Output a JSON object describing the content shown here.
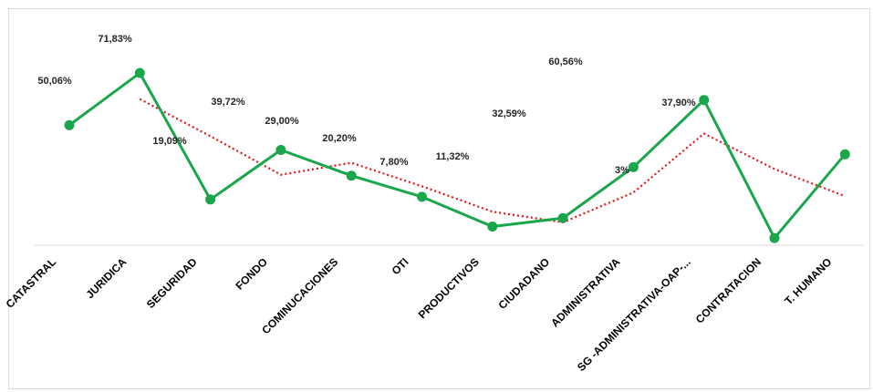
{
  "chart_data": {
    "type": "line",
    "categories": [
      "CATASTRAL",
      "JURIDICA",
      "SEGURIDAD",
      "FONDO",
      "COMINUCACIONES",
      "OTI",
      "PRODUCTIVOS",
      "CIUDADANO",
      "ADMINISTRATIVA",
      "SG -ADMINISTRATIVA-OAP-...",
      "CONTRATACION",
      "T. HUMANO"
    ],
    "series": [
      {
        "values": [
          50.06,
          71.83,
          19.09,
          39.72,
          29.0,
          20.2,
          7.8,
          11.32,
          32.59,
          60.56,
          3.0,
          37.9
        ],
        "data_labels": [
          "50,06%",
          "71,83%",
          "19,09%",
          "39,72%",
          "29,00%",
          "20,20%",
          "7,80%",
          "11,32%",
          "32,59%",
          "60,56%",
          "3%",
          "37,90%"
        ],
        "color": "#1aa64a",
        "style": "solid",
        "markers": true
      },
      {
        "kind": "trendline-moving-average",
        "values": [
          null,
          60.95,
          45.46,
          29.41,
          34.36,
          24.6,
          14.0,
          9.56,
          21.96,
          46.58,
          31.78,
          20.45
        ],
        "color": "#e3151a",
        "style": "dotted"
      }
    ],
    "ylim": [
      0,
      80
    ],
    "grid": false,
    "legend": "none",
    "title": "",
    "xlabel": "",
    "ylabel": ""
  }
}
